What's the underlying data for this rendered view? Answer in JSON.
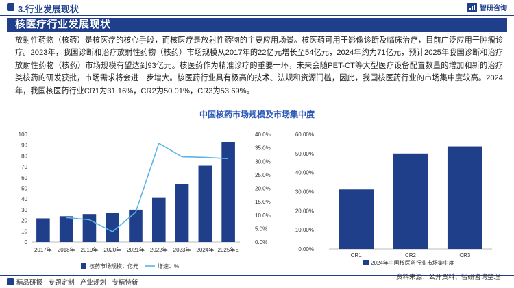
{
  "header": {
    "title": "3.行业发展现状",
    "logo_text": "智研咨询"
  },
  "section": {
    "title": "核医疗行业发展现状"
  },
  "paragraph": "放射性药物（核药）是核医疗的核心手段，而核医疗是放射性药物的主要应用场景。核医药可用于影像诊断及临床治疗，目前广泛应用于肿瘤诊疗。2023年，我国诊断和治疗放射性药物（核药）市场规模从2017年的22亿元增长至54亿元，2024年约为71亿元，预计2025年我国诊断和治疗放射性药物（核药）市场规模有望达到93亿元。核医药作为精准诊疗的重要一环，未来会随PET-CT等大型医疗设备配置数量的增加和新的治疗类核药的研发获批，市场需求将会进一步增大。核医药行业具有极高的技术、法规和资源门槛，因此，我国核医药行业的市场集中度较高。2024年，我国核医药行业CR1为31.16%，CR2为50.01%，CR3为53.69%。",
  "chart_title": "中国核药市场规模及市场集中度",
  "chart_data": [
    {
      "type": "bar",
      "categories": [
        "2017年",
        "2018年",
        "2019年",
        "2020年",
        "2021年",
        "2022年",
        "2023年",
        "2024年",
        "2025年E"
      ],
      "series": [
        {
          "name": "核药市场规模：亿元",
          "type": "bar",
          "axis": "left",
          "color": "#1f3f8a",
          "values": [
            22,
            24,
            26,
            27,
            30,
            41,
            54,
            71,
            93
          ]
        },
        {
          "name": "增速：%",
          "type": "line",
          "axis": "right",
          "color": "#5bb4e5",
          "values": [
            null,
            9.1,
            8.3,
            3.8,
            11.1,
            36.7,
            31.7,
            31.5,
            31.0
          ]
        }
      ],
      "left_axis": {
        "ylim": [
          0,
          100
        ],
        "ticks": [
          "0",
          "10",
          "20",
          "30",
          "40",
          "50",
          "60",
          "70",
          "80",
          "90",
          "100"
        ]
      },
      "right_axis": {
        "ylim": [
          0,
          40
        ],
        "ticks": [
          "0.0%",
          "5.0%",
          "10.0%",
          "15.0%",
          "20.0%",
          "25.0%",
          "30.0%",
          "35.0%",
          "40.0%"
        ]
      },
      "legend_position": "bottom",
      "grid": false
    },
    {
      "type": "bar",
      "categories": [
        "CR1",
        "CR2",
        "CR3"
      ],
      "series": [
        {
          "name": "2024年中国核医药行业市场集中度",
          "color": "#1f3f8a",
          "values": [
            31.16,
            50.01,
            53.69
          ]
        }
      ],
      "ylim": [
        0,
        60
      ],
      "ticks": [
        "0.00%",
        "10.00%",
        "20.00%",
        "30.00%",
        "40.00%",
        "50.00%",
        "60.00%"
      ],
      "legend_position": "bottom",
      "grid": false
    }
  ],
  "footer": {
    "left_text": "精品研报 · 专题定制 · 产业规划 · 专精特新",
    "source": "资料来源：公开资料、智研咨询整理"
  },
  "colors": {
    "brand": "#1f3f8a",
    "line": "#5bb4e5",
    "chart_title": "#2b58b8"
  }
}
